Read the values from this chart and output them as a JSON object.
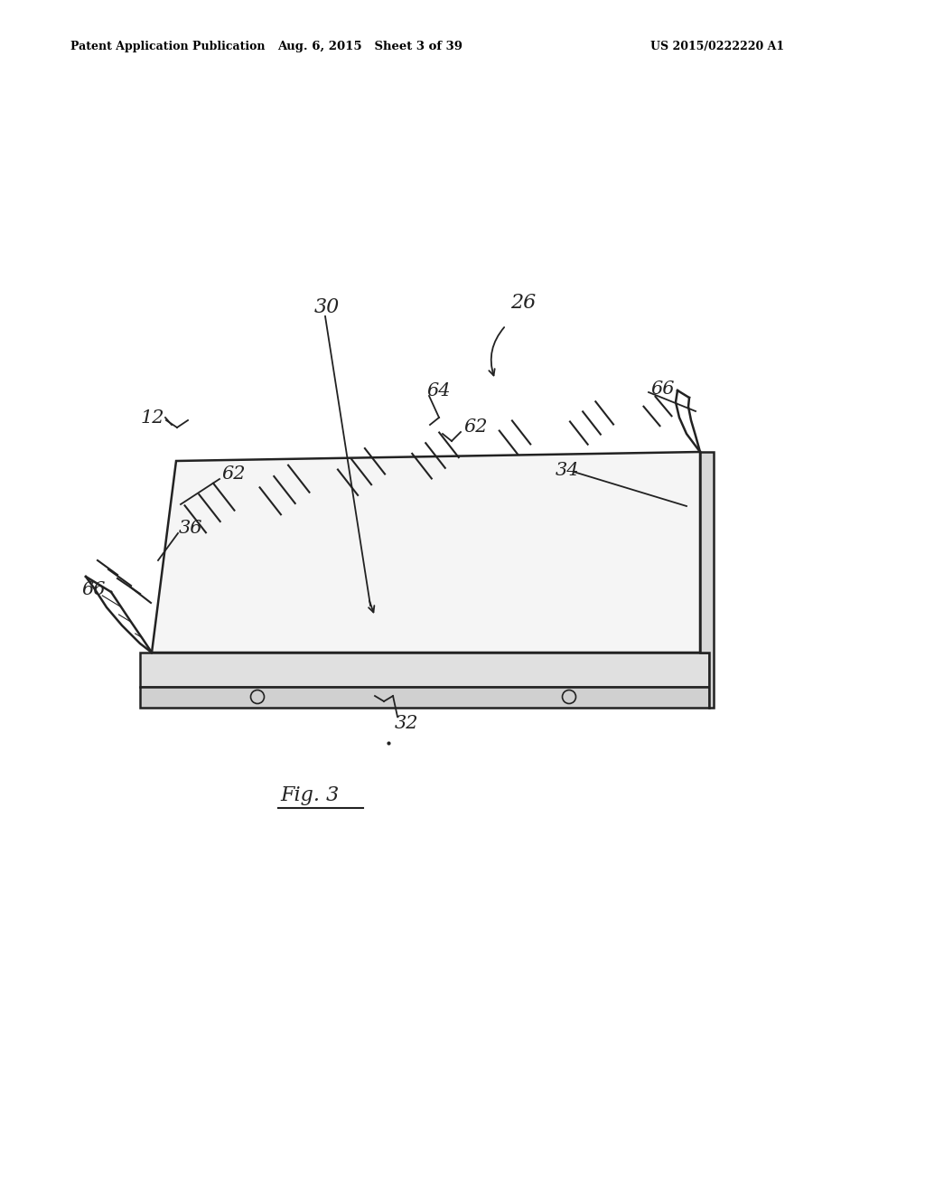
{
  "background_color": "#ffffff",
  "header_left": "Patent Application Publication",
  "header_center": "Aug. 6, 2015   Sheet 3 of 39",
  "header_right": "US 2015/0222220 A1",
  "figure_label": "Fig. 3",
  "line_color": "#222222"
}
